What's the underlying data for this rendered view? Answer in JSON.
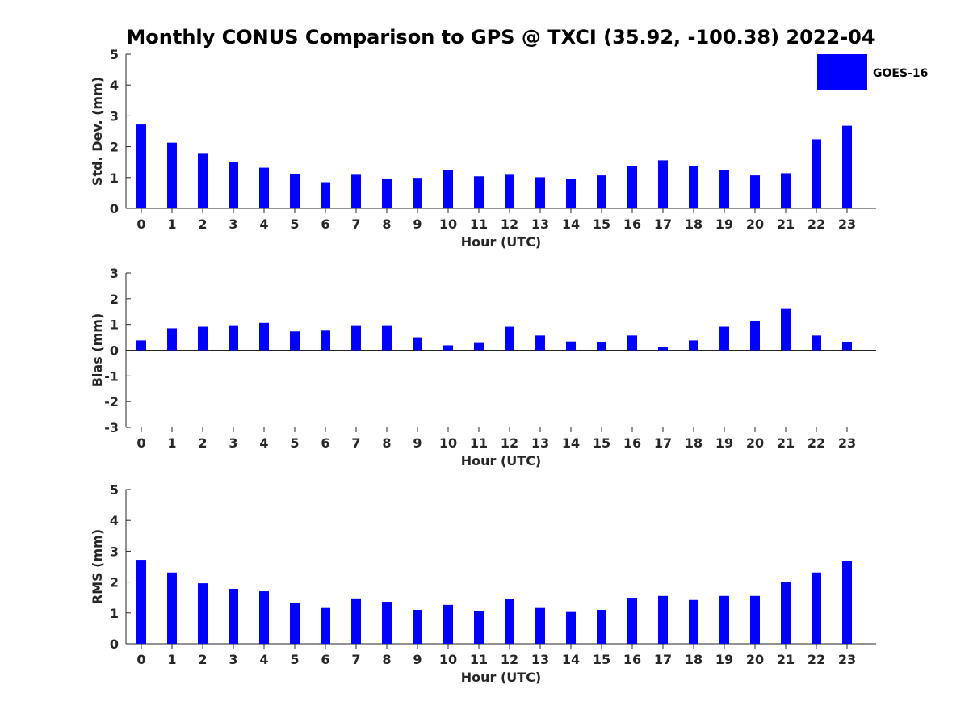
{
  "title": "Monthly CONUS Comparison to GPS @ TXCI (35.92, -100.38) 2022-04",
  "legend": {
    "label": "GOES-16",
    "color": "#0000ff"
  },
  "chart_data": [
    {
      "type": "bar",
      "name": "std",
      "title": "Monthly CONUS Comparison to GPS @ TXCI (35.92, -100.38) 2022-04",
      "xlabel": "Hour (UTC)",
      "ylabel": "Std. Dev. (mm)",
      "ylim": [
        0,
        5
      ],
      "yticks": [
        0,
        1,
        2,
        3,
        4,
        5
      ],
      "categories": [
        "0",
        "1",
        "2",
        "3",
        "4",
        "5",
        "6",
        "7",
        "8",
        "9",
        "10",
        "11",
        "12",
        "13",
        "14",
        "15",
        "16",
        "17",
        "18",
        "19",
        "20",
        "21",
        "22",
        "23"
      ],
      "series": [
        {
          "name": "GOES-16",
          "values": [
            2.72,
            2.13,
            1.77,
            1.5,
            1.32,
            1.12,
            0.85,
            1.09,
            0.97,
            0.99,
            1.25,
            1.04,
            1.09,
            1.01,
            0.96,
            1.07,
            1.38,
            1.56,
            1.38,
            1.25,
            1.07,
            1.14,
            2.24,
            2.68
          ]
        }
      ],
      "legend": "top-right",
      "grid": false
    },
    {
      "type": "bar",
      "name": "bias",
      "xlabel": "Hour (UTC)",
      "ylabel": "Bias (mm)",
      "ylim": [
        -3,
        3
      ],
      "yticks": [
        -3,
        -2,
        -1,
        0,
        1,
        2,
        3
      ],
      "categories": [
        "0",
        "1",
        "2",
        "3",
        "4",
        "5",
        "6",
        "7",
        "8",
        "9",
        "10",
        "11",
        "12",
        "13",
        "14",
        "15",
        "16",
        "17",
        "18",
        "19",
        "20",
        "21",
        "22",
        "23"
      ],
      "series": [
        {
          "name": "GOES-16",
          "values": [
            0.38,
            0.85,
            0.91,
            0.97,
            1.06,
            0.73,
            0.76,
            0.97,
            0.97,
            0.5,
            0.19,
            0.28,
            0.91,
            0.57,
            0.34,
            0.31,
            0.57,
            0.12,
            0.38,
            0.91,
            1.13,
            1.63,
            0.57,
            0.31
          ]
        }
      ],
      "grid": false
    },
    {
      "type": "bar",
      "name": "rms",
      "xlabel": "Hour (UTC)",
      "ylabel": "RMS (mm)",
      "ylim": [
        0,
        5
      ],
      "yticks": [
        0,
        1,
        2,
        3,
        4,
        5
      ],
      "categories": [
        "0",
        "1",
        "2",
        "3",
        "4",
        "5",
        "6",
        "7",
        "8",
        "9",
        "10",
        "11",
        "12",
        "13",
        "14",
        "15",
        "16",
        "17",
        "18",
        "19",
        "20",
        "21",
        "22",
        "23"
      ],
      "series": [
        {
          "name": "GOES-16",
          "values": [
            2.72,
            2.31,
            1.96,
            1.78,
            1.7,
            1.31,
            1.16,
            1.47,
            1.36,
            1.1,
            1.26,
            1.05,
            1.44,
            1.16,
            1.03,
            1.1,
            1.49,
            1.55,
            1.42,
            1.55,
            1.55,
            1.99,
            2.31,
            2.69
          ]
        }
      ],
      "grid": false
    }
  ]
}
